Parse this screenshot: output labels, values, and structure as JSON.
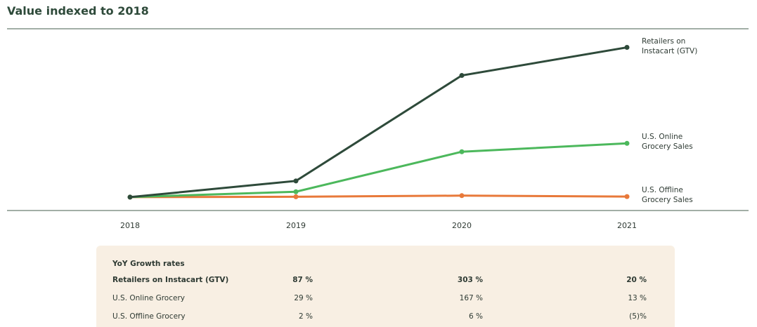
{
  "chart_data": {
    "type": "line",
    "title": "Value indexed to 2018",
    "categories": [
      "2018",
      "2019",
      "2020",
      "2021"
    ],
    "series": [
      {
        "name": "Retailers on Instacart (GTV)",
        "color": "#2e4a3a",
        "values": [
          1,
          1.87,
          7.54,
          9.05
        ]
      },
      {
        "name": "U.S. Online Grocery Sales",
        "color": "#4cb85c",
        "values": [
          1,
          1.29,
          3.44,
          3.89
        ]
      },
      {
        "name": "U.S. Offline Grocery Sales",
        "color": "#e8793a",
        "values": [
          1,
          1.02,
          1.08,
          1.03
        ]
      }
    ],
    "ylim": [
      0.28,
      10.05
    ]
  },
  "table": {
    "header": "YoY Growth rates",
    "rows": [
      [
        "Retailers on Instacart (GTV)",
        "87 %",
        "303 %",
        "20 %"
      ],
      [
        "U.S. Online Grocery",
        "29 %",
        "167 %",
        "13 %"
      ],
      [
        "U.S. Offline Grocery",
        "2 %",
        "6 %",
        "(5)%"
      ]
    ]
  }
}
